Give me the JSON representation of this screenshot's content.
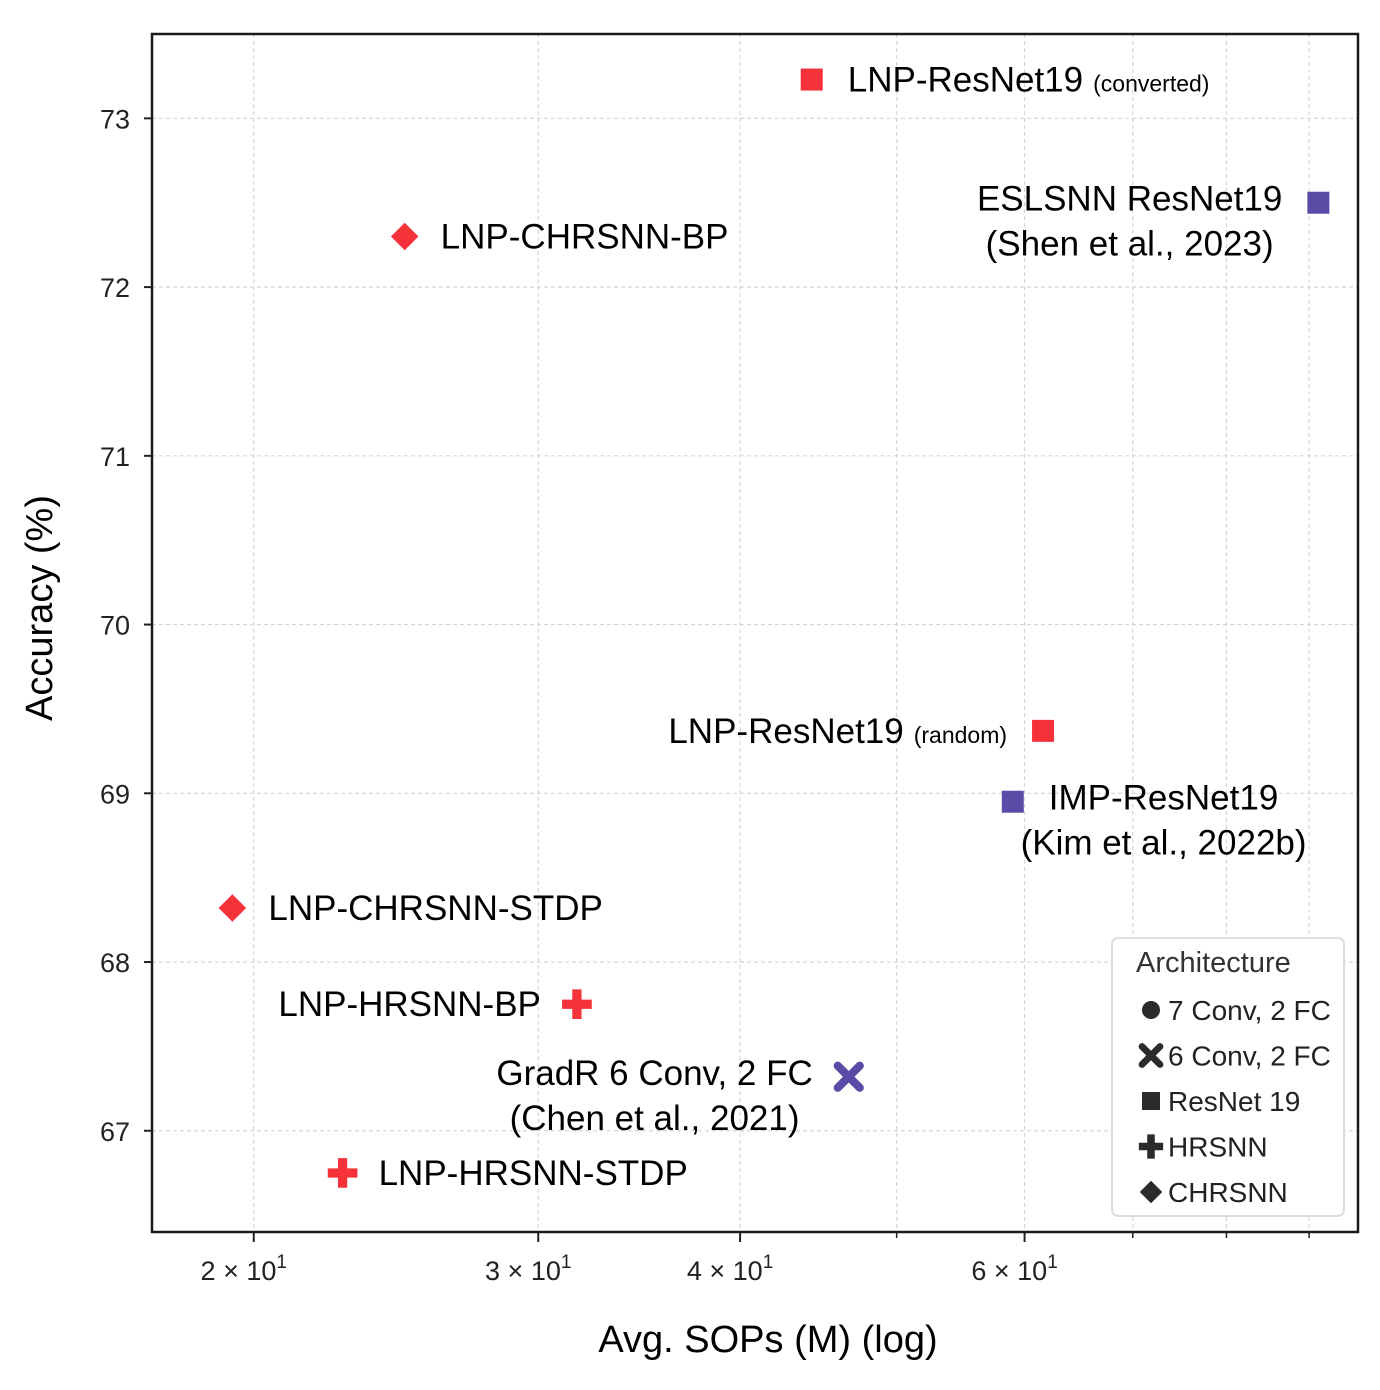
{
  "chart_data": {
    "type": "scatter",
    "xlabel": "Avg. SOPs (M) (log)",
    "ylabel": "Accuracy (%)",
    "x_scale": "log",
    "xlim": [
      17.3,
      96.5
    ],
    "ylim": [
      66.4,
      73.5
    ],
    "grid": true,
    "x_ticks": [
      {
        "value": 20,
        "label": "2 × 10",
        "exp": "1"
      },
      {
        "value": 30,
        "label": "3 × 10",
        "exp": "1"
      },
      {
        "value": 40,
        "label": "4 × 10",
        "exp": "1"
      },
      {
        "value": 60,
        "label": "6 × 10",
        "exp": "1"
      }
    ],
    "x_minor_ticks": [
      50,
      70,
      80,
      90
    ],
    "y_ticks": [
      {
        "value": 67,
        "label": "67"
      },
      {
        "value": 68,
        "label": "68"
      },
      {
        "value": 69,
        "label": "69"
      },
      {
        "value": 70,
        "label": "70"
      },
      {
        "value": 71,
        "label": "71"
      },
      {
        "value": 72,
        "label": "72"
      },
      {
        "value": 73,
        "label": "73"
      }
    ],
    "points": [
      {
        "x": 44.3,
        "y": 73.23,
        "marker": "square",
        "color": "#f5323a",
        "label": "LNP-ResNet19",
        "sub": "(converted)",
        "label_side": "right"
      },
      {
        "x": 91.2,
        "y": 72.5,
        "marker": "square",
        "color": "#5b4ba6",
        "label": "ESLSNN ResNet19",
        "label2": "(Shen et al., 2023)",
        "label_side": "left"
      },
      {
        "x": 24.8,
        "y": 72.3,
        "marker": "diamond",
        "color": "#f5323a",
        "label": "LNP-CHRSNN-BP",
        "label_side": "right"
      },
      {
        "x": 61.6,
        "y": 69.37,
        "marker": "square",
        "color": "#f5323a",
        "label": "LNP-ResNet19",
        "sub": "(random)",
        "label_side": "left"
      },
      {
        "x": 59.0,
        "y": 68.95,
        "marker": "square",
        "color": "#5b4ba6",
        "label": "IMP-ResNet19",
        "label2": "(Kim et al., 2022b)",
        "label_side": "right"
      },
      {
        "x": 19.4,
        "y": 68.32,
        "marker": "diamond",
        "color": "#f5323a",
        "label": "LNP-CHRSNN-STDP",
        "label_side": "right"
      },
      {
        "x": 31.7,
        "y": 67.75,
        "marker": "plus",
        "color": "#f5323a",
        "label": "LNP-HRSNN-BP",
        "label_side": "left"
      },
      {
        "x": 46.7,
        "y": 67.32,
        "marker": "x",
        "color": "#5b4ba6",
        "label": "GradR 6 Conv, 2 FC",
        "label2": "(Chen et al., 2021)",
        "label_side": "left"
      },
      {
        "x": 22.7,
        "y": 66.75,
        "marker": "plus",
        "color": "#f5323a",
        "label": "LNP-HRSNN-STDP",
        "label_side": "right"
      }
    ],
    "legend": {
      "title": "Architecture",
      "position": "lower-right",
      "items": [
        {
          "marker": "circle",
          "label": "7 Conv, 2 FC"
        },
        {
          "marker": "x",
          "label": "6 Conv, 2 FC"
        },
        {
          "marker": "square",
          "label": "ResNet 19"
        },
        {
          "marker": "plus",
          "label": "HRSNN"
        },
        {
          "marker": "diamond",
          "label": "CHRSNN"
        }
      ]
    }
  },
  "colors": {
    "ours": "#f5323a",
    "baseline": "#5b4ba6",
    "legend_marker": "#2b2b2b"
  }
}
